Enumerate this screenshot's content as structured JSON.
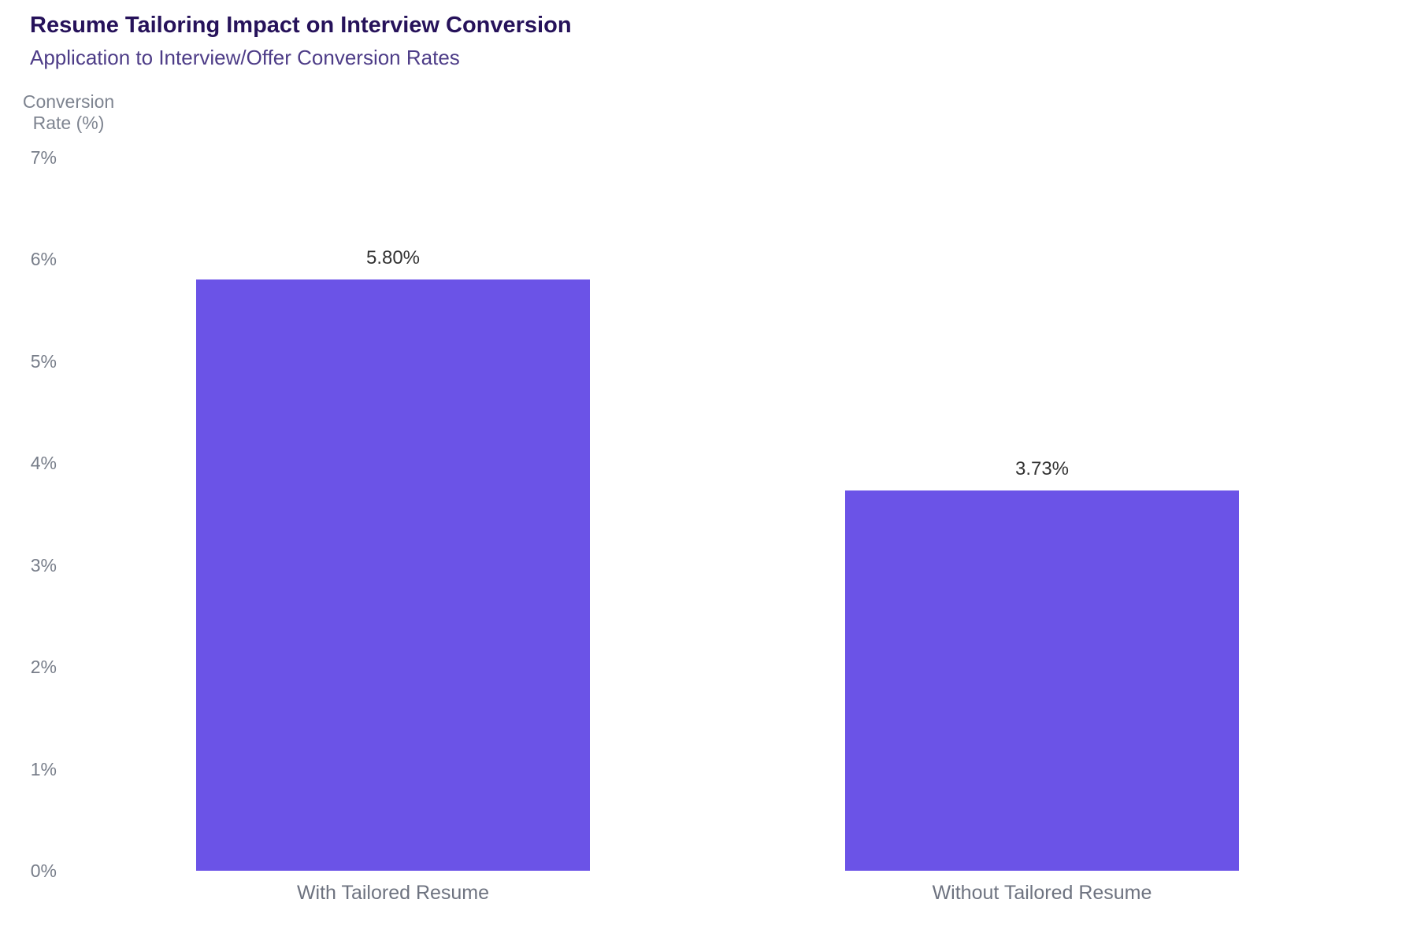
{
  "header": {
    "title": "Resume Tailoring Impact on Interview Conversion",
    "subtitle": "Application to Interview/Offer Conversion Rates"
  },
  "chart_data": {
    "type": "bar",
    "title": "Resume Tailoring Impact on Interview Conversion",
    "subtitle": "Application to Interview/Offer Conversion Rates",
    "categories": [
      "With Tailored Resume",
      "Without Tailored Resume"
    ],
    "values": [
      5.8,
      3.73
    ],
    "value_labels": [
      "5.80%",
      "3.73%"
    ],
    "xlabel": "",
    "ylabel": "Conversion Rate (%)",
    "ylabel_lines": [
      "Conversion",
      "Rate (%)"
    ],
    "ylim": [
      0,
      7
    ],
    "y_ticks": [
      {
        "value": 7,
        "label": "7%"
      },
      {
        "value": 6,
        "label": "6%"
      },
      {
        "value": 5,
        "label": "5%"
      },
      {
        "value": 4,
        "label": "4%"
      },
      {
        "value": 3,
        "label": "3%"
      },
      {
        "value": 2,
        "label": "2%"
      },
      {
        "value": 1,
        "label": "1%"
      },
      {
        "value": 0,
        "label": "0%"
      }
    ],
    "grid": false,
    "legend_position": "none",
    "bar_color": "#6B53E7"
  },
  "colors": {
    "background": "#FFFFFF",
    "title_text": "#26125A",
    "subtitle_text": "#4D3C87",
    "axis_text": "#777D89",
    "category_text": "#6E7380",
    "value_label_text": "#333333",
    "bar_fill": "#6B53E7"
  }
}
